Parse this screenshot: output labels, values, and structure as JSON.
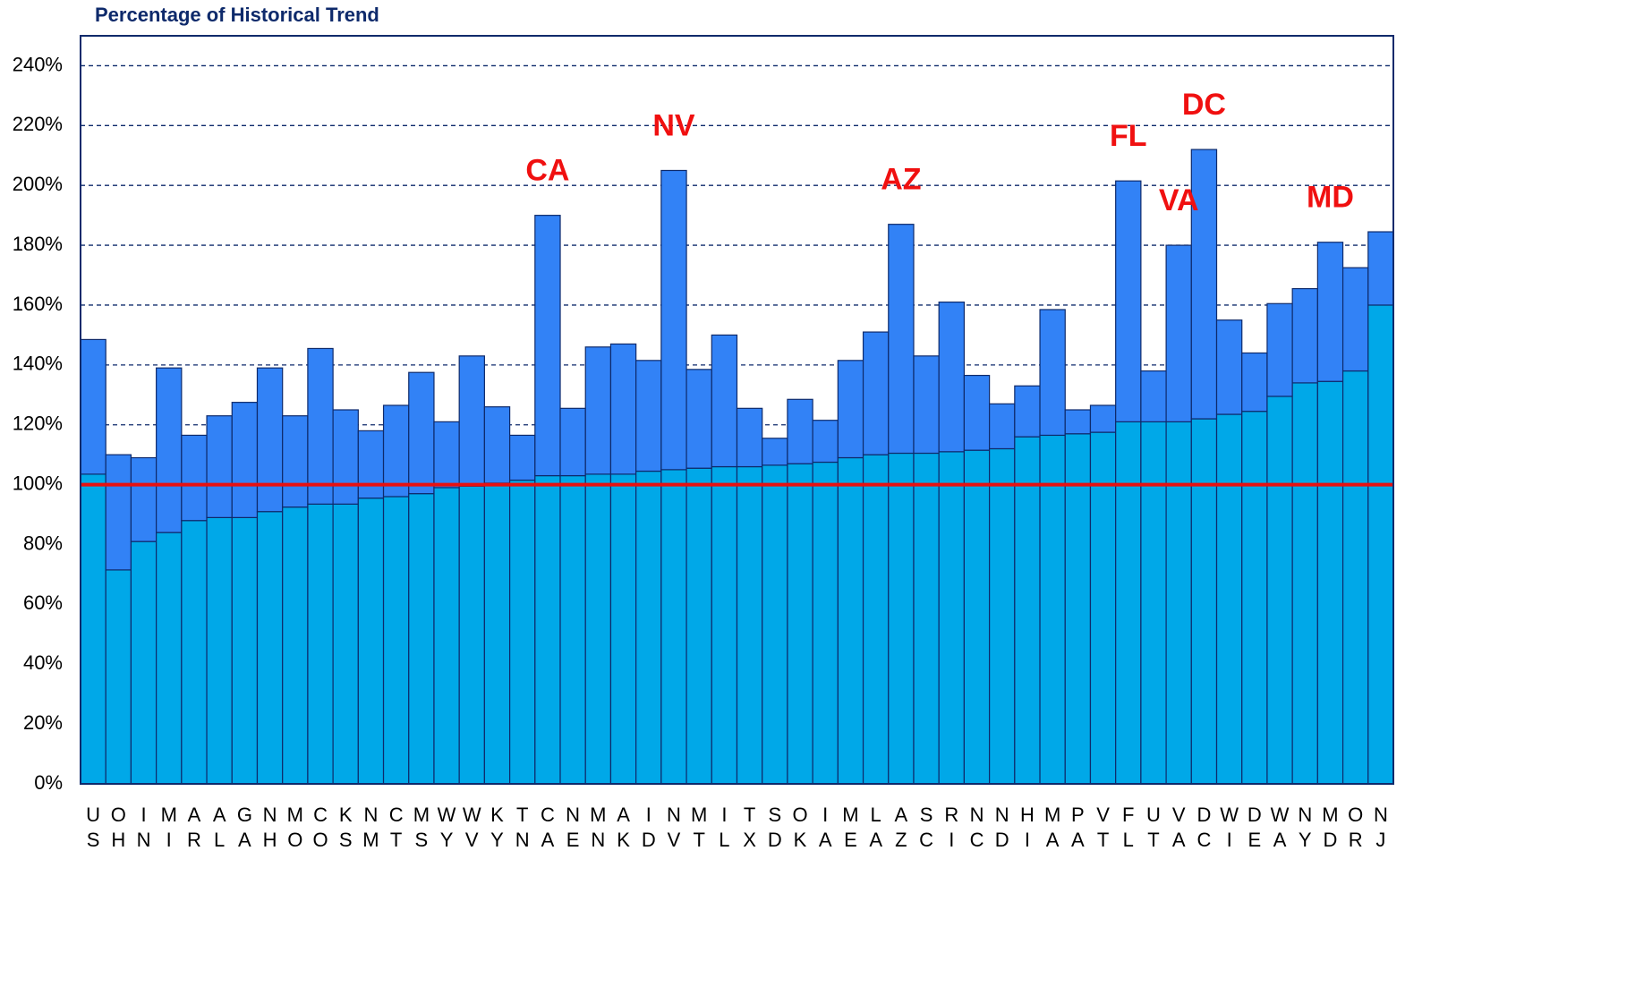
{
  "chart_data": {
    "type": "stacked_bar",
    "title": "Percentage of Historical Trend",
    "categories": [
      "US",
      "OH",
      "IN",
      "MI",
      "AR",
      "AL",
      "GA",
      "NH",
      "MO",
      "CO",
      "KS",
      "NM",
      "CT",
      "MS",
      "WY",
      "WV",
      "KY",
      "TN",
      "CA",
      "NE",
      "MN",
      "AK",
      "ID",
      "NV",
      "MT",
      "IL",
      "TX",
      "SD",
      "OK",
      "IA",
      "ME",
      "LA",
      "AZ",
      "SC",
      "RI",
      "NC",
      "ND",
      "HI",
      "MA",
      "PA",
      "VT",
      "FL",
      "UT",
      "VA",
      "DC",
      "WI",
      "DE",
      "WA",
      "NY",
      "MD",
      "OR",
      "NJ"
    ],
    "series": [
      {
        "color": "#00a8e8",
        "values": [
          103.5,
          71.5,
          81,
          84,
          88,
          89,
          89,
          91,
          92.5,
          93.5,
          93.5,
          95.5,
          96,
          97,
          99,
          99.5,
          100.5,
          101.5,
          103,
          103,
          103.5,
          103.5,
          104.5,
          105,
          105.5,
          106,
          106,
          106.5,
          107,
          107.5,
          109,
          110,
          110.5,
          110.5,
          111,
          111.5,
          112,
          116,
          116.5,
          117,
          117.5,
          121,
          121,
          121,
          122,
          123.5,
          124.5,
          129.5,
          134,
          134.5,
          138,
          160
        ]
      },
      {
        "color": "#3282f6",
        "values": [
          45,
          38.5,
          28,
          55,
          28.5,
          34,
          38.5,
          48,
          30.5,
          52,
          31.5,
          22.5,
          30.5,
          40.5,
          22,
          43.5,
          25.5,
          15,
          87,
          22.5,
          42.5,
          43.5,
          37,
          100,
          33,
          44,
          19.5,
          9,
          21.5,
          14,
          32.5,
          41,
          76.5,
          32.5,
          50,
          25,
          15,
          17,
          42,
          8,
          9,
          80.5,
          17,
          59,
          90,
          31.5,
          19.5,
          31,
          31.5,
          46.5,
          34.5,
          24.5
        ]
      }
    ],
    "ylim": [
      0,
      250
    ],
    "yticks": [
      {
        "value": 0,
        "label": "0%"
      },
      {
        "value": 20,
        "label": "20%"
      },
      {
        "value": 40,
        "label": "40%"
      },
      {
        "value": 60,
        "label": "60%"
      },
      {
        "value": 80,
        "label": "80%"
      },
      {
        "value": 100,
        "label": "100%"
      },
      {
        "value": 120,
        "label": "120%"
      },
      {
        "value": 140,
        "label": "140%"
      },
      {
        "value": 160,
        "label": "160%"
      },
      {
        "value": 180,
        "label": "180%"
      },
      {
        "value": 200,
        "label": "200%"
      },
      {
        "value": 220,
        "label": "220%"
      },
      {
        "value": 240,
        "label": "240%"
      }
    ],
    "grid": true,
    "reference_line": {
      "value": 100,
      "color": "#e81010"
    },
    "annotations": [
      "CA",
      "NV",
      "AZ",
      "FL",
      "VA",
      "DC",
      "MD"
    ]
  }
}
